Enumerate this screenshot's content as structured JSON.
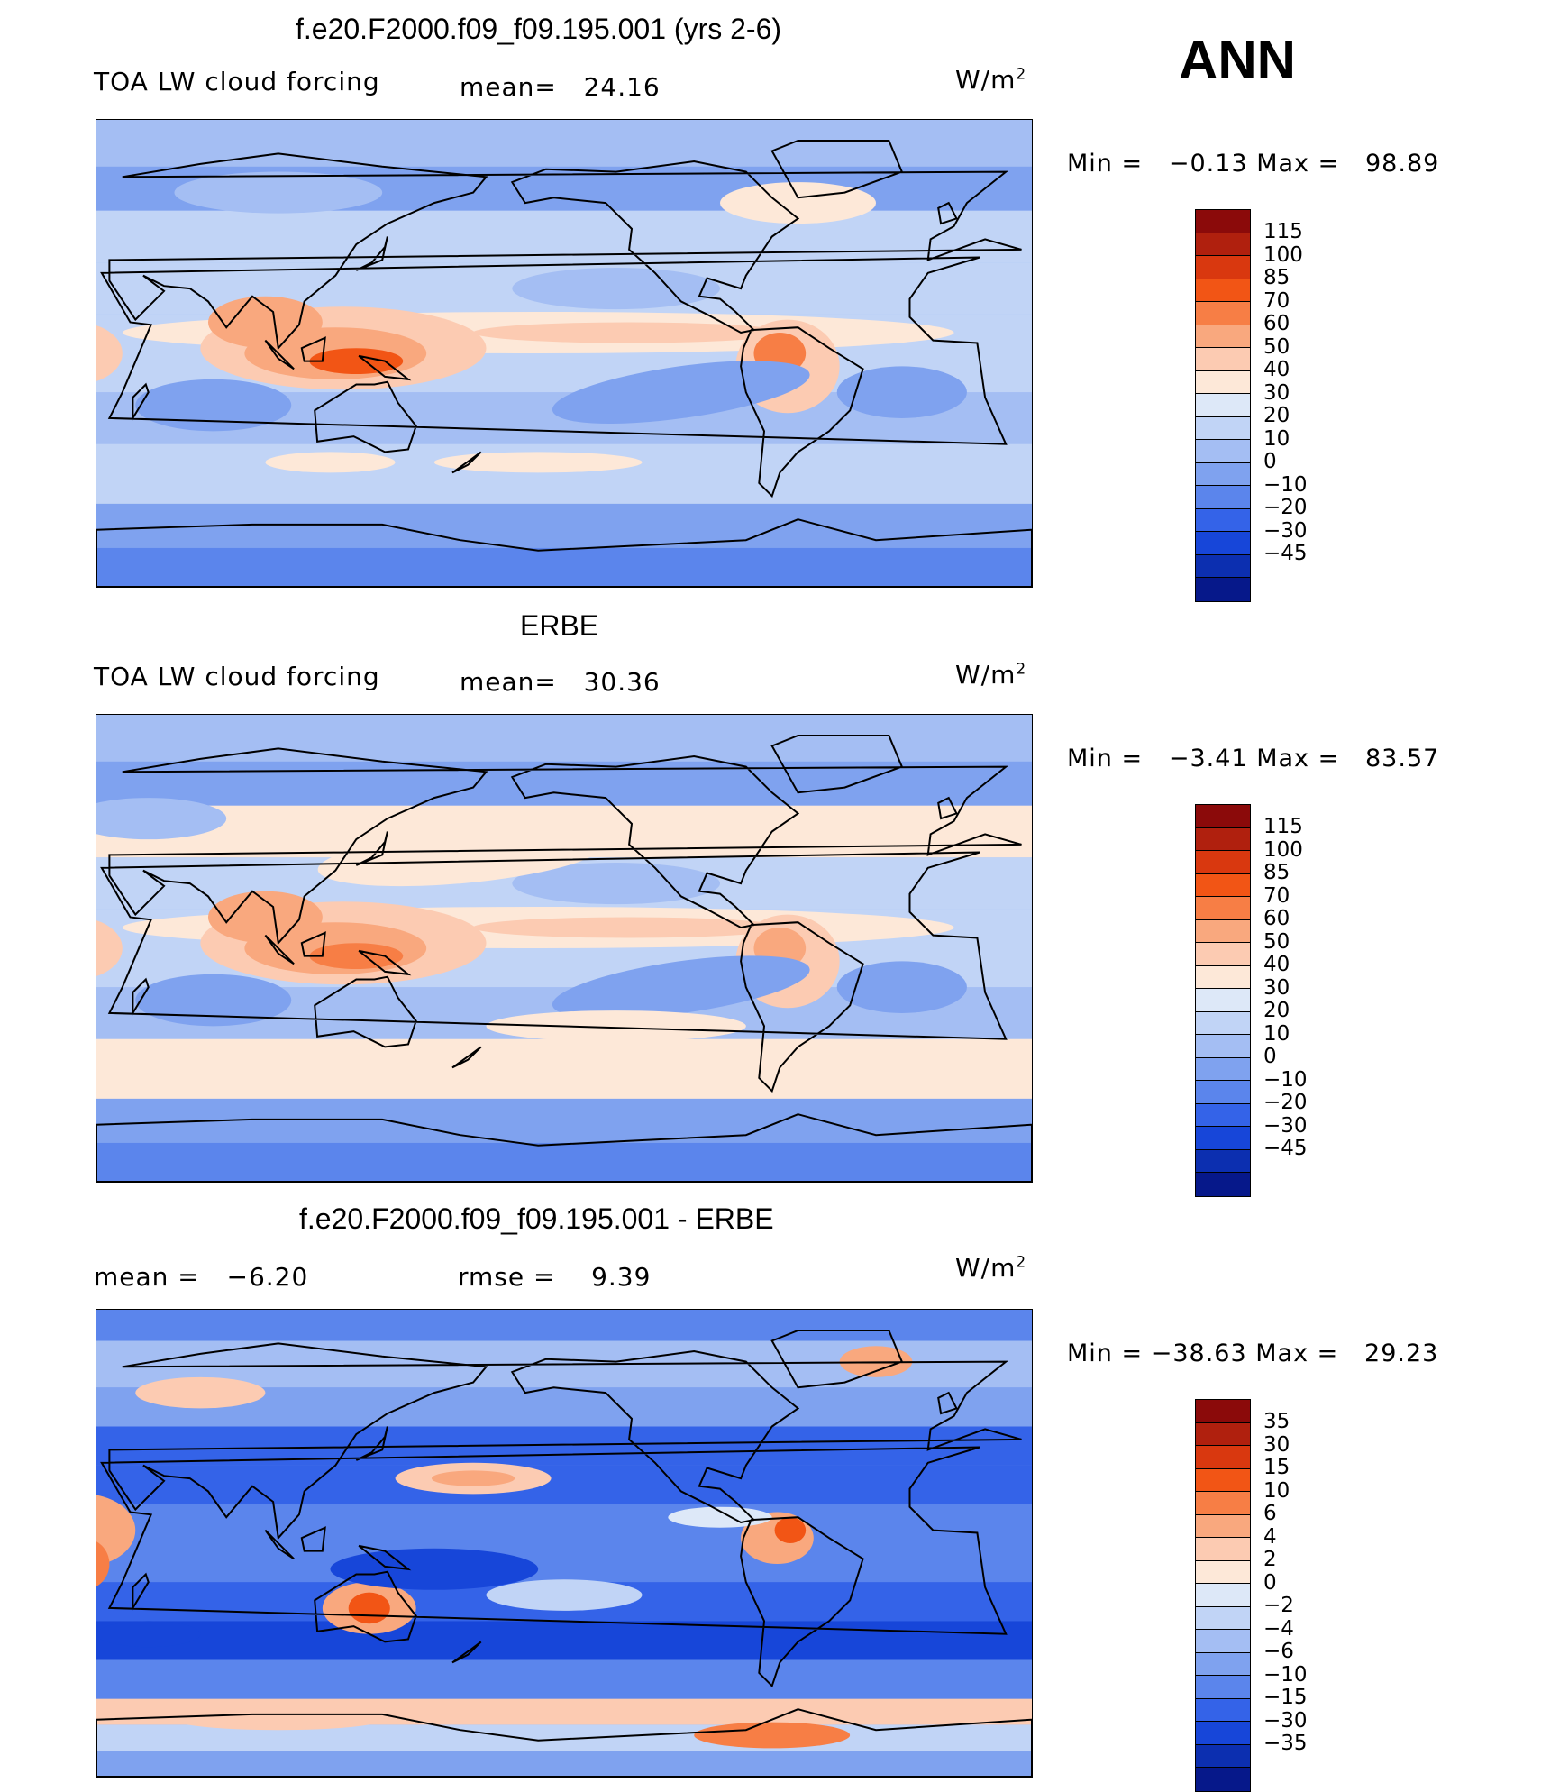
{
  "header": {
    "season": "ANN"
  },
  "palettes": {
    "abs": [
      "#8b0a0a",
      "#b0200e",
      "#d9380f",
      "#f25515",
      "#f77e45",
      "#f9a87e",
      "#fccbb2",
      "#fde8d8",
      "#dde8f8",
      "#c1d4f6",
      "#a4bef3",
      "#7fa2ef",
      "#5b85ec",
      "#3463e8",
      "#1746d9",
      "#0c2fb0",
      "#06188a"
    ],
    "diff": [
      "#8b0a0a",
      "#b0200e",
      "#d9380f",
      "#f25515",
      "#f77e45",
      "#f9a87e",
      "#fccbb2",
      "#fde8d8",
      "#dde8f8",
      "#c1d4f6",
      "#a4bef3",
      "#7fa2ef",
      "#5b85ec",
      "#3463e8",
      "#1746d9",
      "#0c2fb0",
      "#06188a"
    ]
  },
  "panels": [
    {
      "id": "model",
      "title": "f.e20.F2000.f09_f09.195.001 (yrs 2-6)",
      "variable": "TOA LW cloud forcing",
      "mean_label": "mean=",
      "mean_value": "24.16",
      "units_base": "W/m",
      "units_exp": "2",
      "min_label": "Min =",
      "min_value": "−0.13",
      "max_label": "Max =",
      "max_value": "98.89",
      "colorbar_labels": [
        "115",
        "100",
        "85",
        "70",
        "60",
        "50",
        "40",
        "30",
        "20",
        "10",
        "0",
        "−10",
        "−20",
        "−30",
        "−45"
      ]
    },
    {
      "id": "obs",
      "title": "ERBE",
      "variable": "TOA LW cloud forcing",
      "mean_label": "mean=",
      "mean_value": "30.36",
      "units_base": "W/m",
      "units_exp": "2",
      "min_label": "Min =",
      "min_value": "−3.41",
      "max_label": "Max =",
      "max_value": "83.57",
      "colorbar_labels": [
        "115",
        "100",
        "85",
        "70",
        "60",
        "50",
        "40",
        "30",
        "20",
        "10",
        "0",
        "−10",
        "−20",
        "−30",
        "−45"
      ]
    },
    {
      "id": "diff",
      "title": "f.e20.F2000.f09_f09.195.001 - ERBE",
      "mean_label": "mean =",
      "mean_value": "−6.20",
      "rmse_label": "rmse =",
      "rmse_value": "9.39",
      "units_base": "W/m",
      "units_exp": "2",
      "min_label": "Min =",
      "min_value": "−38.63",
      "max_label": "Max =",
      "max_value": "29.23",
      "colorbar_labels": [
        "35",
        "30",
        "15",
        "10",
        "6",
        "4",
        "2",
        "0",
        "−2",
        "−4",
        "−6",
        "−10",
        "−15",
        "−30",
        "−35"
      ]
    }
  ]
}
